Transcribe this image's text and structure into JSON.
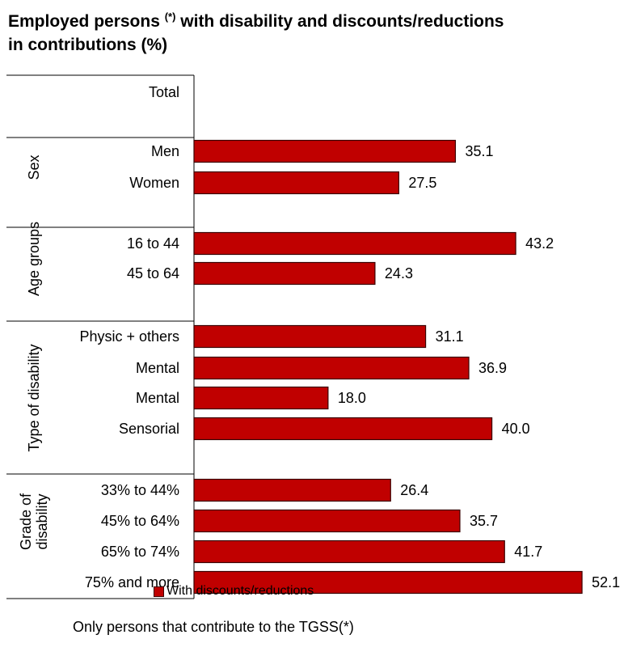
{
  "title": {
    "line1_pre": "Employed persons ",
    "sup": "(*)",
    "line1_post": " with disability and discounts/reductions",
    "line2": "in contributions (%)"
  },
  "chart_data": {
    "type": "bar",
    "orientation": "horizontal",
    "bar_color": "#c00000",
    "groups": [
      {
        "label": "",
        "items": [
          {
            "category": "Total",
            "value": null
          }
        ]
      },
      {
        "label": "Sex",
        "items": [
          {
            "category": "Men",
            "value": 35.1
          },
          {
            "category": "Women",
            "value": 27.5
          }
        ]
      },
      {
        "label": "Age groups",
        "items": [
          {
            "category": "16 to 44",
            "value": 43.2
          },
          {
            "category": "45 to 64",
            "value": 24.3
          }
        ]
      },
      {
        "label": "Type of disability",
        "items": [
          {
            "category": "Physic + others",
            "value": 31.1
          },
          {
            "category": "Mental",
            "value": 36.9
          },
          {
            "category": "Mental",
            "value": 18.0
          },
          {
            "category": "Sensorial",
            "value": 40.0
          }
        ]
      },
      {
        "label": "Grade of disability",
        "items": [
          {
            "category": "33% to 44%",
            "value": 26.4
          },
          {
            "category": "45% to 64%",
            "value": 35.7
          },
          {
            "category": "65% to 74%",
            "value": 41.7
          },
          {
            "category": "75% and more",
            "value": 52.1
          }
        ]
      }
    ],
    "legend": [
      "With discounts/reductions"
    ],
    "legend_position": "bottom"
  },
  "footnote": "Only persons that contribute to the TGSS(*)"
}
